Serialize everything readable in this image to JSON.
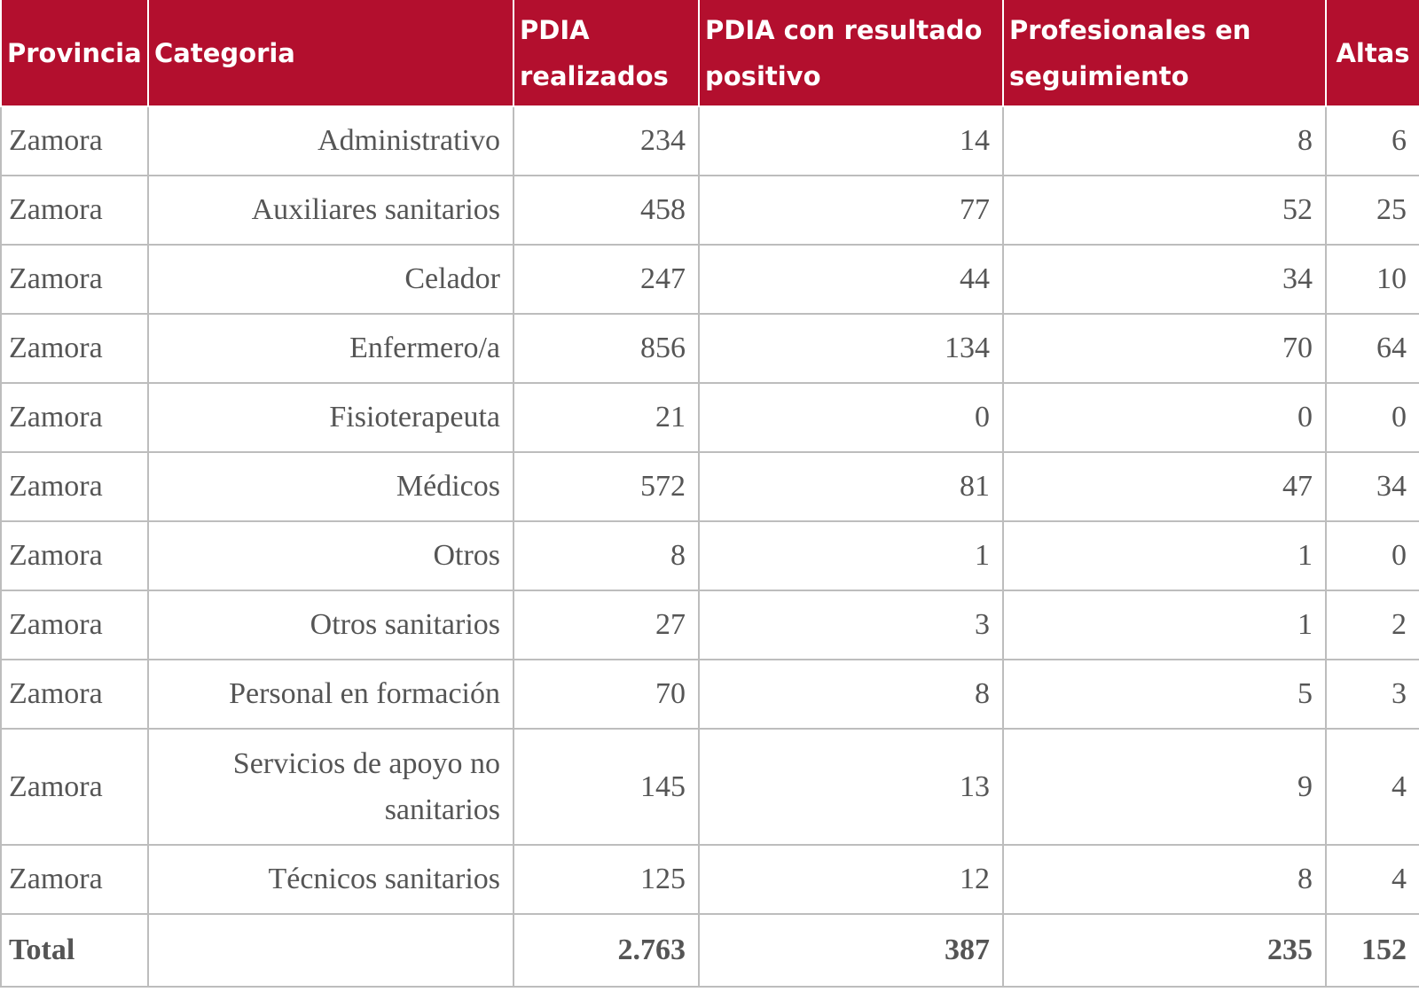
{
  "table": {
    "header": [
      "Provincia",
      "Categoria",
      "PDIA realizados",
      "PDIA con resultado positivo",
      "Profesionales en seguimiento",
      "Altas"
    ],
    "rows": [
      [
        "Zamora",
        "Administrativo",
        "234",
        "14",
        "8",
        "6"
      ],
      [
        "Zamora",
        "Auxiliares sanitarios",
        "458",
        "77",
        "52",
        "25"
      ],
      [
        "Zamora",
        "Celador",
        "247",
        "44",
        "34",
        "10"
      ],
      [
        "Zamora",
        "Enfermero/a",
        "856",
        "134",
        "70",
        "64"
      ],
      [
        "Zamora",
        "Fisioterapeuta",
        "21",
        "0",
        "0",
        "0"
      ],
      [
        "Zamora",
        "Médicos",
        "572",
        "81",
        "47",
        "34"
      ],
      [
        "Zamora",
        "Otros",
        "8",
        "1",
        "1",
        "0"
      ],
      [
        "Zamora",
        "Otros sanitarios",
        "27",
        "3",
        "1",
        "2"
      ],
      [
        "Zamora",
        "Personal en formación",
        "70",
        "8",
        "5",
        "3"
      ],
      [
        "Zamora",
        "Servicios de apoyo no sanitarios",
        "145",
        "13",
        "9",
        "4"
      ],
      [
        "Zamora",
        "Técnicos sanitarios",
        "125",
        "12",
        "8",
        "4"
      ]
    ],
    "total": {
      "label": "Total",
      "values": [
        "2.763",
        "387",
        "235",
        "152"
      ]
    }
  }
}
